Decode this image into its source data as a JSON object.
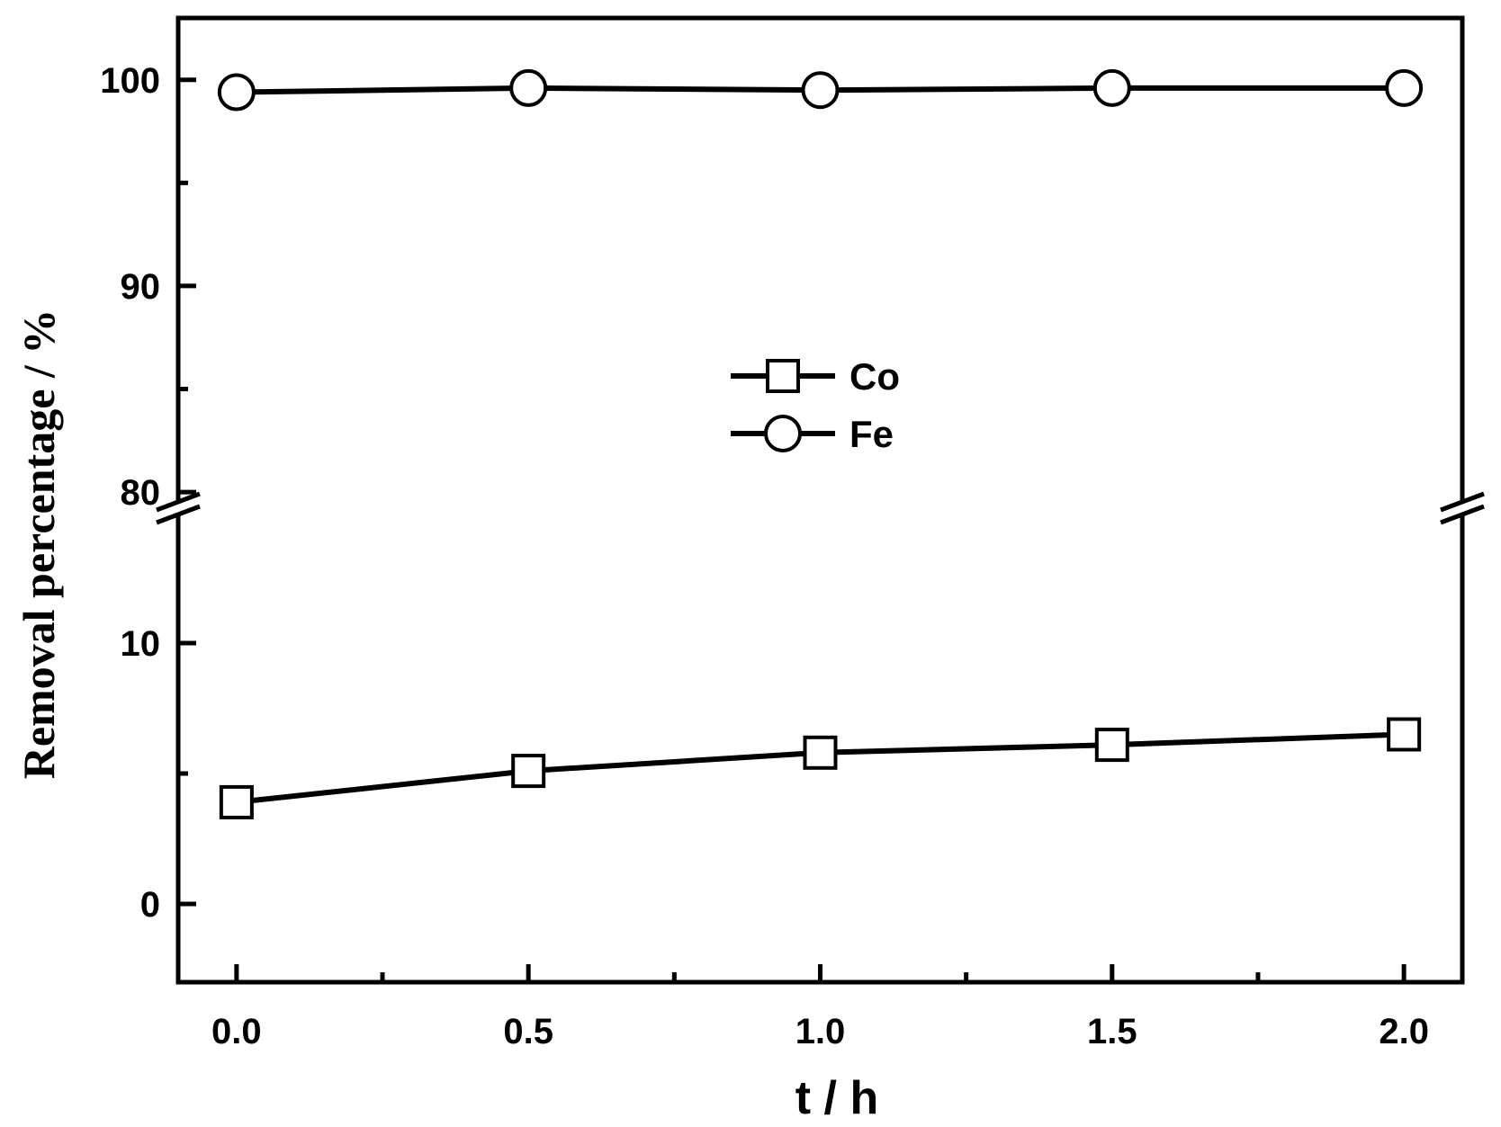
{
  "chart_data": {
    "type": "line",
    "xlabel": "t / h",
    "ylabel": "Removal percentage / %",
    "x": [
      0.0,
      0.5,
      1.0,
      1.5,
      2.0
    ],
    "x_ticks": [
      "0.0",
      "0.5",
      "1.0",
      "1.5",
      "2.0"
    ],
    "xlim": [
      -0.1,
      2.1
    ],
    "y_break": true,
    "y_segments": [
      {
        "range": [
          -3,
          15
        ],
        "ticks": [
          "0",
          "10"
        ],
        "tick_values": [
          0,
          10
        ]
      },
      {
        "range": [
          79,
          103
        ],
        "ticks": [
          "80",
          "90",
          "100"
        ],
        "tick_values": [
          80,
          90,
          100
        ]
      }
    ],
    "series": [
      {
        "name": "Co",
        "marker": "square",
        "values": [
          3.9,
          5.1,
          5.8,
          6.1,
          6.5
        ]
      },
      {
        "name": "Fe",
        "marker": "circle",
        "values": [
          99.4,
          99.6,
          99.5,
          99.6,
          99.6
        ]
      }
    ],
    "legend": "center",
    "grid": false,
    "line_color": "#000000",
    "marker_fill": "#ffffff"
  }
}
